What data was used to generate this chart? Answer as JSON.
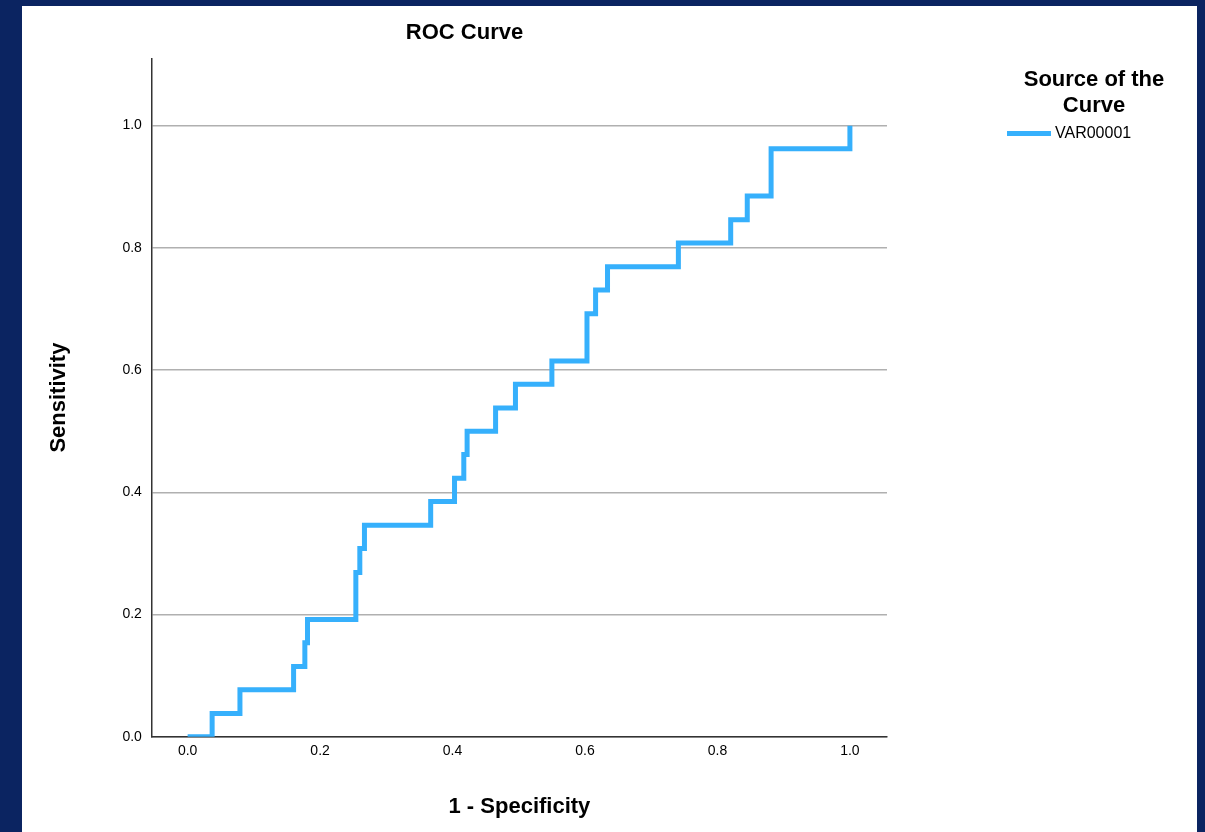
{
  "chart_data": {
    "type": "step",
    "title": "ROC Curve",
    "xlabel": "1 - Specificity",
    "ylabel": "Sensitivity",
    "legend_title": "Source of the Curve",
    "legend": "top right",
    "grid": "y",
    "marker": "none",
    "line_style": "solid",
    "xlim": [
      -0.054,
      1.056
    ],
    "ylim": [
      0,
      1.11
    ],
    "xticks": [
      {
        "value": 0,
        "label": "0.0"
      },
      {
        "value": 0.2,
        "label": "0.2"
      },
      {
        "value": 0.4,
        "label": "0.4"
      },
      {
        "value": 0.6,
        "label": "0.6"
      },
      {
        "value": 0.8,
        "label": "0.8"
      },
      {
        "value": 1,
        "label": "1.0"
      }
    ],
    "yticks": [
      {
        "value": 0,
        "label": "0.0"
      },
      {
        "value": 0.2,
        "label": "0.2"
      },
      {
        "value": 0.4,
        "label": "0.4"
      },
      {
        "value": 0.6,
        "label": "0.6"
      },
      {
        "value": 0.8,
        "label": "0.8"
      },
      {
        "value": 1,
        "label": "1.0"
      }
    ],
    "x": [
      0,
      0.037,
      0.079,
      0.16,
      0.177,
      0.181,
      0.254,
      0.26,
      0.267,
      0.367,
      0.403,
      0.417,
      0.422,
      0.465,
      0.495,
      0.55,
      0.603,
      0.616,
      0.634,
      0.741,
      0.82,
      0.845,
      0.881,
      1
    ],
    "series": [
      {
        "name": "VAR00001",
        "color": "#36b0fc",
        "values": [
          0,
          0.038,
          0.077,
          0.115,
          0.154,
          0.192,
          0.269,
          0.308,
          0.346,
          0.385,
          0.423,
          0.462,
          0.5,
          0.538,
          0.577,
          0.615,
          0.692,
          0.731,
          0.769,
          0.808,
          0.846,
          0.885,
          0.962,
          1
        ]
      }
    ]
  }
}
